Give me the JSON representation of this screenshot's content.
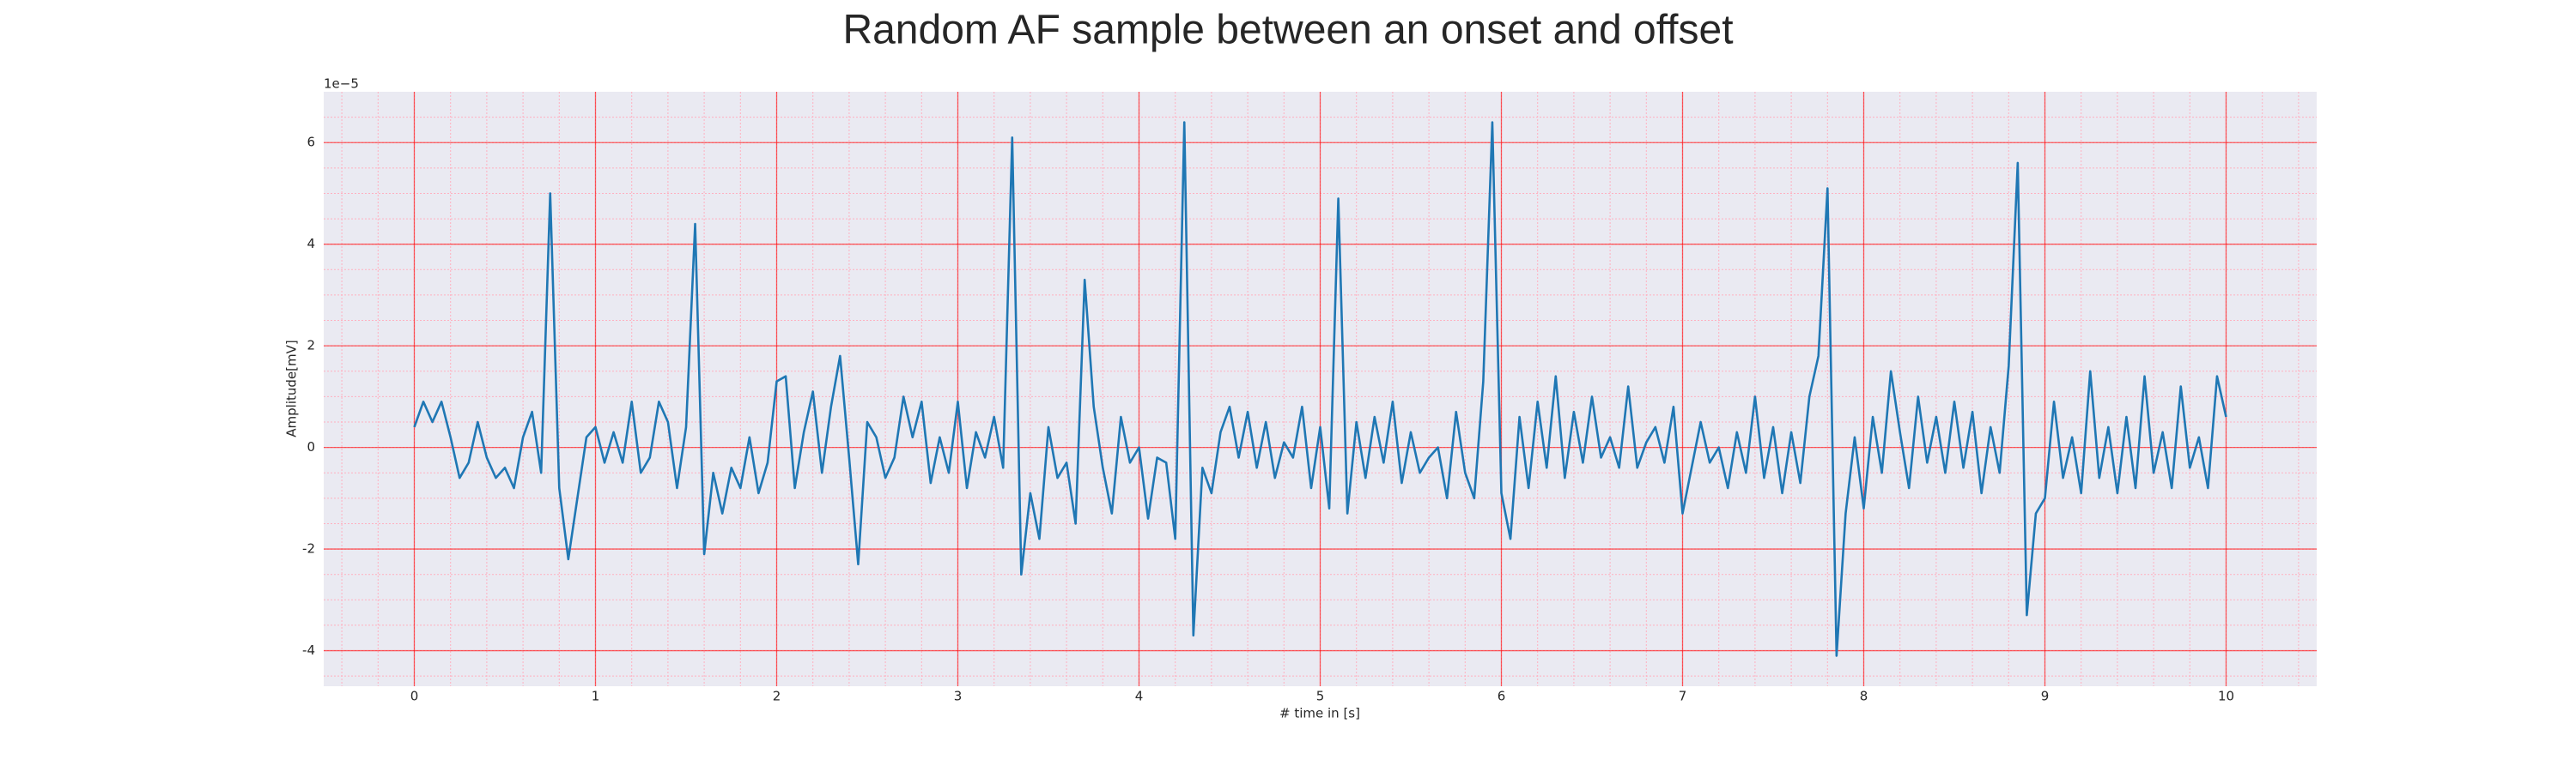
{
  "chart_data": {
    "type": "line",
    "title": "Random AF sample between an onset and offset",
    "xlabel": "# time in [s]",
    "ylabel": "Amplitude[mV]",
    "y_offset_label": "1e−5",
    "xlim": [
      -0.5,
      10.5
    ],
    "ylim": [
      -4.7,
      7.0
    ],
    "xticks": [
      0,
      1,
      2,
      3,
      4,
      5,
      6,
      7,
      8,
      9,
      10
    ],
    "yticks": [
      -4,
      -2,
      0,
      2,
      4,
      6
    ],
    "minor_xticks": [
      -0.4,
      -0.2,
      0,
      0.2,
      0.4,
      0.6,
      0.8,
      1,
      1.2,
      1.4,
      1.6,
      1.8,
      2,
      2.2,
      2.4,
      2.6,
      2.8,
      3,
      3.2,
      3.4,
      3.6,
      3.8,
      4,
      4.2,
      4.4,
      4.6,
      4.8,
      5,
      5.2,
      5.4,
      5.6,
      5.8,
      6,
      6.2,
      6.4,
      6.6,
      6.8,
      7,
      7.2,
      7.4,
      7.6,
      7.8,
      8,
      8.2,
      8.4,
      8.6,
      8.8,
      9,
      9.2,
      9.4,
      9.6,
      9.8,
      10,
      10.2,
      10.4
    ],
    "minor_yticks": [
      -4.5,
      -4,
      -3.5,
      -3,
      -2.5,
      -2,
      -1.5,
      -1,
      -0.5,
      0,
      0.5,
      1,
      1.5,
      2,
      2.5,
      3,
      3.5,
      4,
      4.5,
      5,
      5.5,
      6,
      6.5
    ],
    "grid": true,
    "grid_color": "#ff0000",
    "minor_grid_color": "#ffb0c0",
    "background": "#eaeaf2",
    "x": [
      0,
      0.05,
      0.1,
      0.15,
      0.2,
      0.25,
      0.3,
      0.35,
      0.4,
      0.45,
      0.5,
      0.55,
      0.6,
      0.65,
      0.7,
      0.75,
      0.8,
      0.85,
      0.9,
      0.95,
      1,
      1.05,
      1.1,
      1.15,
      1.2,
      1.25,
      1.3,
      1.35,
      1.4,
      1.45,
      1.5,
      1.55,
      1.6,
      1.65,
      1.7,
      1.75,
      1.8,
      1.85,
      1.9,
      1.95,
      2,
      2.05,
      2.1,
      2.15,
      2.2,
      2.25,
      2.3,
      2.35,
      2.4,
      2.45,
      2.5,
      2.55,
      2.6,
      2.65,
      2.7,
      2.75,
      2.8,
      2.85,
      2.9,
      2.95,
      3,
      3.05,
      3.1,
      3.15,
      3.2,
      3.25,
      3.3,
      3.35,
      3.4,
      3.45,
      3.5,
      3.55,
      3.6,
      3.65,
      3.7,
      3.75,
      3.8,
      3.85,
      3.9,
      3.95,
      4,
      4.05,
      4.1,
      4.15,
      4.2,
      4.25,
      4.3,
      4.35,
      4.4,
      4.45,
      4.5,
      4.55,
      4.6,
      4.65,
      4.7,
      4.75,
      4.8,
      4.85,
      4.9,
      4.95,
      5,
      5.05,
      5.1,
      5.15,
      5.2,
      5.25,
      5.3,
      5.35,
      5.4,
      5.45,
      5.5,
      5.55,
      5.6,
      5.65,
      5.7,
      5.75,
      5.8,
      5.85,
      5.9,
      5.95,
      6,
      6.05,
      6.1,
      6.15,
      6.2,
      6.25,
      6.3,
      6.35,
      6.4,
      6.45,
      6.5,
      6.55,
      6.6,
      6.65,
      6.7,
      6.75,
      6.8,
      6.85,
      6.9,
      6.95,
      7,
      7.05,
      7.1,
      7.15,
      7.2,
      7.25,
      7.3,
      7.35,
      7.4,
      7.45,
      7.5,
      7.55,
      7.6,
      7.65,
      7.7,
      7.75,
      7.8,
      7.85,
      7.9,
      7.95,
      8,
      8.05,
      8.1,
      8.15,
      8.2,
      8.25,
      8.3,
      8.35,
      8.4,
      8.45,
      8.5,
      8.55,
      8.6,
      8.65,
      8.7,
      8.75,
      8.8,
      8.85,
      8.9,
      8.95,
      9,
      9.05,
      9.1,
      9.15,
      9.2,
      9.25,
      9.3,
      9.35,
      9.4,
      9.45,
      9.5,
      9.55,
      9.6,
      9.65,
      9.7,
      9.75,
      9.8,
      9.85,
      9.9,
      9.95,
      10
    ],
    "series": [
      {
        "color": "#1f77b4",
        "values": [
          0.4,
          0.9,
          0.5,
          0.9,
          0.2,
          -0.6,
          -0.3,
          0.5,
          -0.2,
          -0.6,
          -0.4,
          -0.8,
          0.2,
          0.7,
          -0.5,
          5.0,
          -0.8,
          -2.2,
          -1.0,
          0.2,
          0.4,
          -0.3,
          0.3,
          -0.3,
          0.9,
          -0.5,
          -0.2,
          0.9,
          0.5,
          -0.8,
          0.4,
          4.4,
          -2.1,
          -0.5,
          -1.3,
          -0.4,
          -0.8,
          0.2,
          -0.9,
          -0.3,
          1.3,
          1.4,
          -0.8,
          0.3,
          1.1,
          -0.5,
          0.8,
          1.8,
          -0.2,
          -2.3,
          0.5,
          0.2,
          -0.6,
          -0.2,
          1.0,
          0.2,
          0.9,
          -0.7,
          0.2,
          -0.5,
          0.9,
          -0.8,
          0.3,
          -0.2,
          0.6,
          -0.4,
          6.1,
          -2.5,
          -0.9,
          -1.8,
          0.4,
          -0.6,
          -0.3,
          -1.5,
          3.3,
          0.8,
          -0.4,
          -1.3,
          0.6,
          -0.3,
          0.0,
          -1.4,
          -0.2,
          -0.3,
          -1.8,
          6.4,
          -3.7,
          -0.4,
          -0.9,
          0.3,
          0.8,
          -0.2,
          0.7,
          -0.4,
          0.5,
          -0.6,
          0.1,
          -0.2,
          0.8,
          -0.8,
          0.4,
          -1.2,
          4.9,
          -1.3,
          0.5,
          -0.6,
          0.6,
          -0.3,
          0.9,
          -0.7,
          0.3,
          -0.5,
          -0.2,
          0.0,
          -1.0,
          0.7,
          -0.5,
          -1.0,
          1.3,
          6.4,
          -0.9,
          -1.8,
          0.6,
          -0.8,
          0.9,
          -0.4,
          1.4,
          -0.6,
          0.7,
          -0.3,
          1.0,
          -0.2,
          0.2,
          -0.4,
          1.2,
          -0.4,
          0.1,
          0.4,
          -0.3,
          0.8,
          -1.3,
          -0.4,
          0.5,
          -0.3,
          0.0,
          -0.8,
          0.3,
          -0.5,
          1.0,
          -0.6,
          0.4,
          -0.9,
          0.3,
          -0.7,
          1.0,
          1.8,
          5.1,
          -4.1,
          -1.3,
          0.2,
          -1.2,
          0.6,
          -0.5,
          1.5,
          0.3,
          -0.8,
          1.0,
          -0.3,
          0.6,
          -0.5,
          0.9,
          -0.4,
          0.7,
          -0.9,
          0.4,
          -0.5,
          1.6,
          5.6,
          -3.3,
          -1.3,
          -1.0,
          0.9,
          -0.6,
          0.2,
          -0.9,
          1.5,
          -0.6,
          0.4,
          -0.9,
          0.6,
          -0.8,
          1.4,
          -0.5,
          0.3,
          -0.8,
          1.2,
          -0.4,
          0.2,
          -0.8,
          1.4,
          0.6
        ]
      }
    ]
  }
}
